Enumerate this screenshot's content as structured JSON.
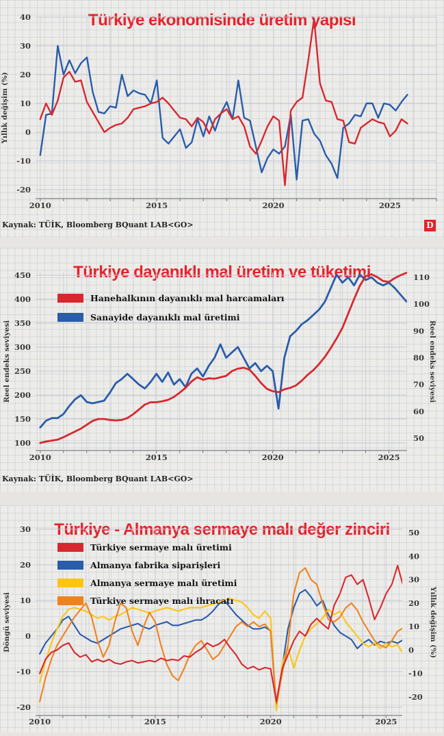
{
  "page": {
    "background": "#edece9",
    "accent_red": "#e4232b"
  },
  "chart_data": [
    {
      "type": "line",
      "title": "Türkiye ekonomisinde üretim yapısı",
      "ylabel_left": "Yıllık değişim (%)",
      "source": "Kaynak: TÜİK, Bloomberg BQuant LAB<GO>",
      "badge": "D",
      "grid": true,
      "legend_position": "none",
      "x_ticks": [
        2010,
        2015,
        2020,
        2025
      ],
      "xlim": [
        2009.8,
        2027.0
      ],
      "yticks_left": [
        40,
        30,
        20,
        10,
        0,
        -10,
        -20
      ],
      "ylim_left": [
        -23.1,
        40
      ],
      "x_start": 2010,
      "x_step": 0.25,
      "series": [
        {
          "name": "",
          "color": "#d7282e",
          "axis": "left",
          "values": [
            4.5,
            10,
            6,
            11,
            19,
            21,
            17.5,
            18,
            10.5,
            7,
            3.5,
            0,
            1.5,
            2.5,
            3,
            5,
            8,
            8.5,
            9,
            10,
            10.5,
            12,
            10,
            7.5,
            5,
            4.5,
            2,
            5,
            3.5,
            -0.5,
            4.5,
            6.5,
            8,
            4.5,
            5.5,
            2,
            -5,
            -7.5,
            -3,
            2,
            5.5,
            4,
            -18.5,
            7.5,
            10.5,
            12,
            25,
            39.5,
            17,
            11,
            10.5,
            4.5,
            4,
            -3.5,
            -4,
            1.5,
            3,
            4.5,
            3.5,
            3,
            -1.5,
            0.5,
            4.5,
            3
          ]
        },
        {
          "name": "",
          "color": "#2a5caa",
          "axis": "left",
          "values": [
            -8,
            6,
            6.5,
            30,
            20,
            25,
            20.5,
            24,
            26,
            14,
            7,
            6.5,
            9,
            8.5,
            20,
            12.5,
            14.5,
            13.5,
            13,
            10,
            18,
            -2,
            -4,
            -1.5,
            1,
            -5.5,
            -3.5,
            4.5,
            -1.5,
            5.5,
            0.5,
            6.5,
            10.5,
            4.5,
            18,
            5,
            4,
            -5,
            -14,
            -9,
            -6,
            -7.5,
            -5,
            6,
            -16.5,
            4,
            4.5,
            -0.5,
            -3,
            -8,
            -11,
            -16,
            1.5,
            3,
            6,
            5.5,
            10,
            10,
            5,
            10,
            9.5,
            7.5,
            10.5,
            13
          ]
        }
      ]
    },
    {
      "type": "line",
      "title": "Türkiye dayanıklı mal üretim ve tüketimi",
      "ylabel_left": "Reel endeks seviyesi",
      "ylabel_right": "Reel endeks seviyesi",
      "source": "Kaynak: TÜİK, Bloomberg BQuant LAB<GO>",
      "grid": true,
      "legend_position": "upper-left",
      "x_ticks": [
        2010,
        2015,
        2020,
        2025
      ],
      "xlim": [
        2009.8,
        2025.78
      ],
      "yticks_left": [
        450,
        400,
        350,
        300,
        250,
        200,
        150,
        100
      ],
      "ylim_left": [
        84.3,
        455.7
      ],
      "yticks_right": [
        110,
        100,
        90,
        80,
        70,
        60,
        50
      ],
      "ylim_right": [
        45.4,
        111.8
      ],
      "x_start": 2010,
      "x_step": 0.25,
      "series": [
        {
          "name": "Hanehalkının dayanıklı mal harcamaları",
          "color": "#d7282e",
          "axis": "left",
          "values": [
            100,
            103,
            105,
            107,
            112,
            118,
            124,
            130,
            138,
            146,
            150,
            150,
            148,
            147,
            148,
            152,
            160,
            170,
            180,
            185,
            185,
            187,
            190,
            196,
            205,
            215,
            228,
            237,
            232,
            235,
            234,
            237,
            240,
            250,
            255,
            257,
            253,
            240,
            225,
            213,
            208,
            206,
            212,
            215,
            220,
            230,
            242,
            252,
            265,
            280,
            298,
            318,
            340,
            370,
            400,
            428,
            448,
            452,
            446,
            438,
            436,
            444,
            450,
            455
          ]
        },
        {
          "name": "Sanayide dayanıklı mal üretimi",
          "color": "#2a5caa",
          "axis": "right",
          "values": [
            54,
            56.5,
            57.5,
            57.5,
            59,
            62,
            64.5,
            66,
            63.5,
            63,
            63.5,
            64,
            67,
            70.5,
            72,
            74,
            72,
            70,
            68.5,
            71,
            74,
            71,
            74.5,
            70,
            72,
            69,
            74,
            76,
            73,
            77,
            80,
            85,
            80,
            82,
            84,
            80,
            76,
            78,
            75,
            77,
            75,
            61,
            80,
            88,
            90,
            92.5,
            94,
            96,
            98,
            101,
            106,
            111,
            108,
            110,
            107,
            111,
            109,
            110,
            108,
            107,
            108,
            106,
            103.5,
            101
          ]
        }
      ]
    },
    {
      "type": "line",
      "title": "Türkiye - Almanya sermaye malı değer zinciri",
      "ylabel_left": "Döngü seviyesi",
      "ylabel_right": "Yıllık değişim (%)",
      "grid": true,
      "legend_position": "upper-left",
      "x_ticks": [
        2010,
        2015,
        2020,
        2025
      ],
      "xlim": [
        2009.82,
        2025.7
      ],
      "yticks_left": [
        30,
        20,
        10,
        0,
        -10,
        -20
      ],
      "ylim_left": [
        -22.3,
        30
      ],
      "yticks_right": [
        50,
        40,
        30,
        20,
        10,
        0,
        -10,
        -20
      ],
      "ylim_right": [
        -27.9,
        51.5
      ],
      "x_start": 2010,
      "x_step": 0.25,
      "series": [
        {
          "name": "Türkiye sermaye malı üretimi",
          "color": "#d7282e",
          "axis": "right",
          "values": [
            -10,
            -4,
            -1,
            0,
            2,
            3,
            -1,
            -3,
            -2,
            -5,
            -4,
            -5,
            -4,
            -5.5,
            -6,
            -5,
            -4.5,
            -5.5,
            -5,
            -4.5,
            -5,
            -3.5,
            -4.5,
            -4,
            -4.5,
            -2.5,
            -3,
            -1,
            0.5,
            3,
            1.5,
            2.5,
            4.5,
            1,
            -2,
            -6,
            -8,
            -7,
            -8.5,
            -7.5,
            -8,
            -22,
            -8,
            -2,
            4,
            8,
            6,
            11,
            13.5,
            11,
            9,
            19,
            24,
            31,
            32,
            28,
            30,
            22,
            13,
            18,
            24,
            28,
            36,
            27
          ]
        },
        {
          "name": "Almanya fabrika siparişleri",
          "color": "#2a5caa",
          "axis": "left",
          "values": [
            -5,
            -2,
            0,
            2,
            4.5,
            5.5,
            3,
            0.5,
            -0.5,
            -1.5,
            -2,
            -1,
            0,
            1,
            2,
            2.5,
            3,
            3.5,
            2.5,
            2,
            3,
            3.5,
            4,
            3,
            3,
            3.5,
            4,
            4.5,
            4.5,
            5.5,
            7,
            9,
            10,
            8,
            6,
            4.5,
            3,
            2,
            2,
            2.5,
            1.5,
            -20,
            -9,
            2,
            8,
            12,
            13,
            11,
            8.5,
            10,
            6,
            3,
            1,
            0,
            -1,
            -3.5,
            -2,
            -1,
            -2.5,
            -1.5,
            -2,
            -1.5,
            -2,
            -1
          ]
        },
        {
          "name": "Almanya sermaye malı üretimi",
          "color": "#fdc513",
          "axis": "left",
          "values": [
            -13,
            -7,
            -2,
            2,
            5.5,
            7.5,
            8,
            7.5,
            7,
            6,
            5,
            5.5,
            4.5,
            5.5,
            6,
            7,
            8,
            7.5,
            7,
            6.5,
            7,
            7.5,
            8,
            7.5,
            7,
            7.5,
            8,
            8,
            8,
            8.5,
            9,
            9.5,
            10,
            10.5,
            10,
            9.5,
            8,
            6,
            5,
            7,
            5,
            -21,
            -8,
            -3,
            -9,
            -4,
            0,
            2,
            3.5,
            5,
            7.5,
            6,
            7,
            4,
            2,
            0,
            -2,
            -3,
            -2,
            -3.5,
            -2,
            -3,
            -2.5,
            -5
          ]
        },
        {
          "name": "Türkiye sermaye malı ihracatı",
          "color": "#f0821e",
          "axis": "right",
          "values": [
            -22,
            -12,
            -4,
            2,
            6,
            10,
            14,
            17,
            20,
            14,
            4,
            -3,
            2,
            12,
            20,
            18,
            8,
            2,
            10,
            16,
            12,
            2,
            -6,
            -11,
            -13,
            -8,
            -2,
            2,
            4,
            0,
            -4,
            -2,
            2,
            6,
            10,
            12,
            10,
            12,
            10,
            11,
            8,
            -23,
            -10,
            2,
            24,
            33,
            35,
            30,
            28,
            20,
            13,
            12,
            14,
            18,
            20,
            17,
            12,
            8,
            4,
            2,
            1,
            4,
            8,
            9.5
          ]
        }
      ]
    }
  ]
}
